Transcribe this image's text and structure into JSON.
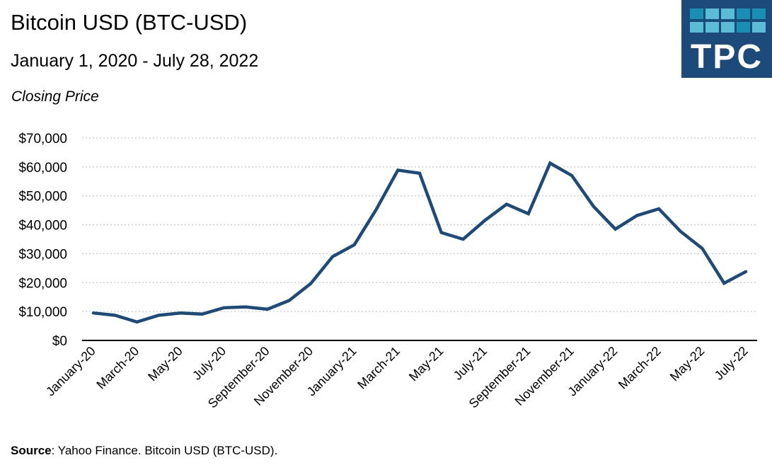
{
  "header": {
    "title": "Bitcoin USD (BTC-USD)",
    "subtitle": "January 1, 2020 - July 28, 2022",
    "metric": "Closing Price"
  },
  "logo": {
    "text": "TPC",
    "background": "#1c4a7a",
    "squares_light": "#5bbcd6",
    "squares_dark": "#1a8fb4"
  },
  "footer": {
    "source_label": "Source",
    "source_text": ": Yahoo Finance. Bitcoin USD (BTC-USD)."
  },
  "colors": {
    "line": "#1c4a7a",
    "grid": "#c8c8c8",
    "axis": "#000000"
  },
  "chart_data": {
    "type": "line",
    "title": "Bitcoin USD (BTC-USD)",
    "subtitle": "January 1, 2020 - July 28, 2022",
    "ylabel": "Closing Price",
    "xlabel": "",
    "ylim": [
      0,
      70000
    ],
    "yticks": [
      0,
      10000,
      20000,
      30000,
      40000,
      50000,
      60000,
      70000
    ],
    "ytick_labels": [
      "$0",
      "$10,000",
      "$20,000",
      "$30,000",
      "$40,000",
      "$50,000",
      "$60,000",
      "$70,000"
    ],
    "grid": true,
    "x": [
      "January-20",
      "February-20",
      "March-20",
      "April-20",
      "May-20",
      "June-20",
      "July-20",
      "August-20",
      "September-20",
      "October-20",
      "November-20",
      "December-20",
      "January-21",
      "February-21",
      "March-21",
      "April-21",
      "May-21",
      "June-21",
      "July-21",
      "August-21",
      "September-21",
      "October-21",
      "November-21",
      "December-21",
      "January-22",
      "February-22",
      "March-22",
      "April-22",
      "May-22",
      "June-22",
      "July-22"
    ],
    "xtick_labels": [
      "January-20",
      "March-20",
      "May-20",
      "July-20",
      "September-20",
      "November-20",
      "January-21",
      "March-21",
      "May-21",
      "July-21",
      "September-21",
      "November-21",
      "January-22",
      "March-22",
      "May-22",
      "July-22"
    ],
    "series": [
      {
        "name": "Closing Price",
        "values": [
          9500,
          8700,
          6400,
          8700,
          9500,
          9100,
          11300,
          11600,
          10800,
          13800,
          19700,
          29000,
          33100,
          45200,
          58900,
          57800,
          37300,
          35000,
          41500,
          47100,
          43800,
          61300,
          57000,
          46300,
          38500,
          43200,
          45500,
          37700,
          31800,
          19800,
          23800
        ]
      }
    ]
  }
}
